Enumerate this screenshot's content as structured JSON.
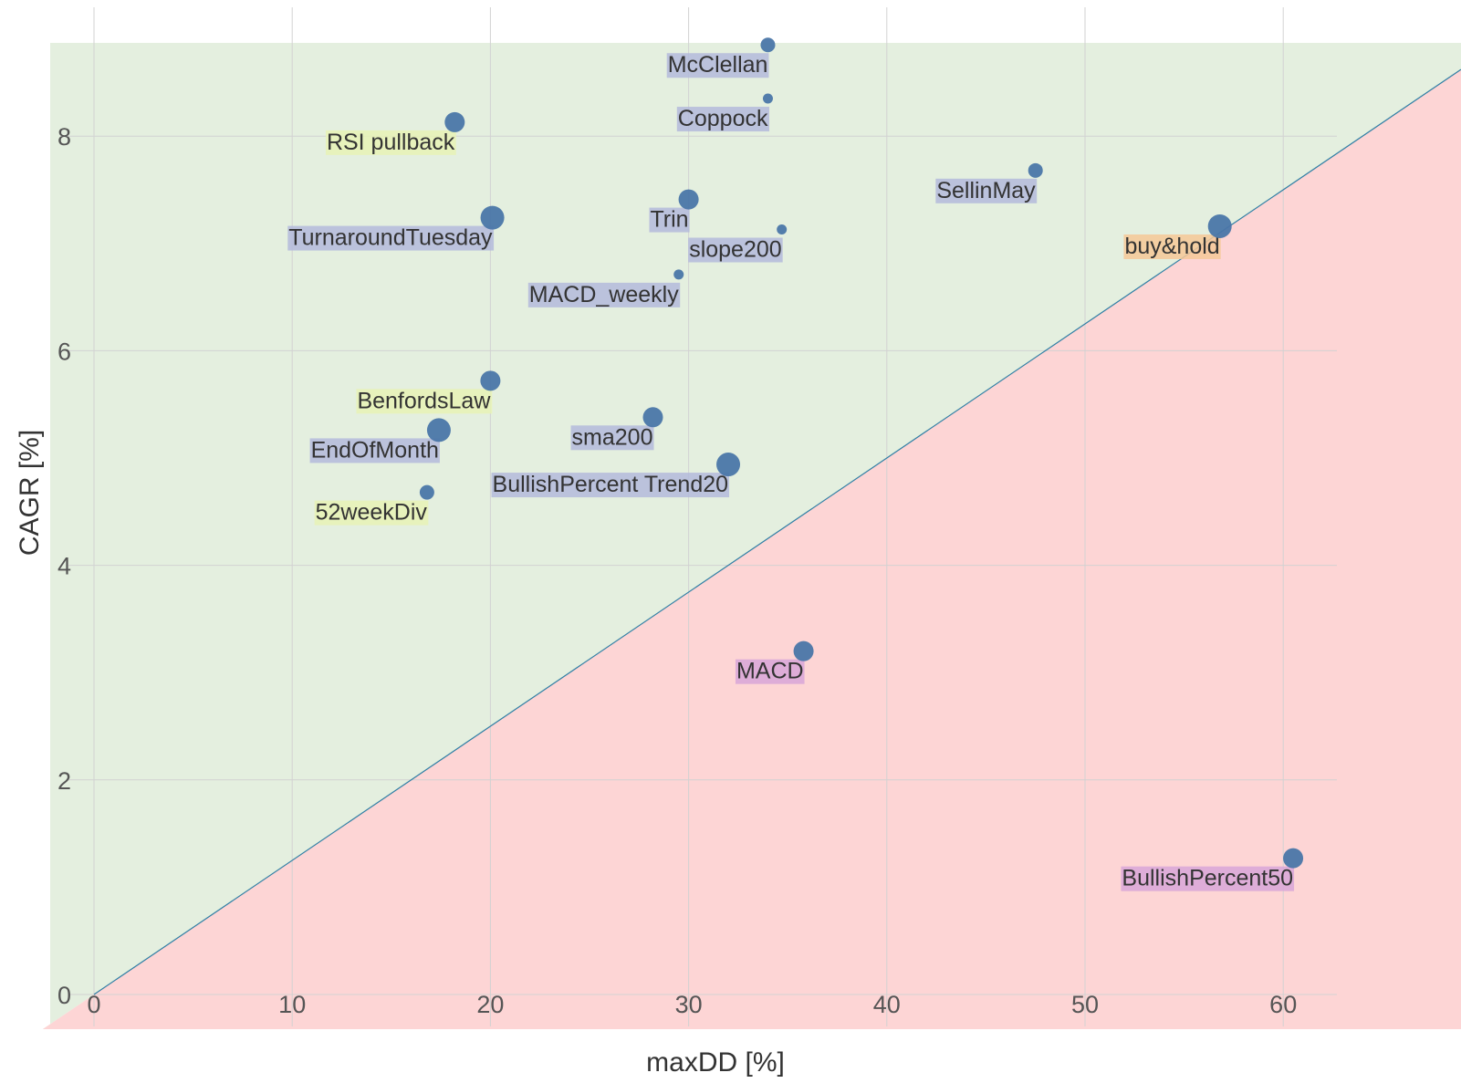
{
  "chart_data": {
    "type": "scatter",
    "title": "",
    "xlabel": "maxDD [%]",
    "ylabel": "CAGR [%]",
    "xlim": [
      -1.3,
      68
    ],
    "ylim": [
      -0.3,
      8.7
    ],
    "x_ticks": [
      "0",
      "10",
      "20",
      "30",
      "40",
      "50",
      "60"
    ],
    "y_ticks": [
      "0",
      "2",
      "4",
      "6",
      "8"
    ],
    "grid": true,
    "reference_line": {
      "slope": 0.125,
      "above_color": "#e4efdf",
      "below_color": "#fdd5d5"
    },
    "point_color": "#4a76a8",
    "points": [
      {
        "name": "McClellan",
        "x": 34.0,
        "y": 8.85,
        "size": "small",
        "highlight": "#b4badc"
      },
      {
        "name": "Coppock",
        "x": 34.0,
        "y": 8.35,
        "size": "tiny",
        "highlight": "#b4badc"
      },
      {
        "name": "RSI pullback",
        "x": 18.2,
        "y": 8.13,
        "size": "medium",
        "highlight": "#e8f2b6"
      },
      {
        "name": "SellinMay",
        "x": 47.5,
        "y": 7.68,
        "size": "small",
        "highlight": "#b4badc"
      },
      {
        "name": "Trin",
        "x": 30.0,
        "y": 7.41,
        "size": "medium",
        "highlight": "#b4badc"
      },
      {
        "name": "TurnaroundTuesday",
        "x": 20.1,
        "y": 7.24,
        "size": "large",
        "highlight": "#b4badc"
      },
      {
        "name": "slope200",
        "x": 34.7,
        "y": 7.13,
        "size": "tiny",
        "highlight": "#b4badc"
      },
      {
        "name": "buy&hold",
        "x": 56.8,
        "y": 7.16,
        "size": "large",
        "highlight": "#f6c898"
      },
      {
        "name": "MACD_weekly",
        "x": 29.5,
        "y": 6.71,
        "size": "tiny",
        "highlight": "#b4badc"
      },
      {
        "name": "BenfordsLaw",
        "x": 20.0,
        "y": 5.72,
        "size": "medium",
        "highlight": "#e8f2b6"
      },
      {
        "name": "sma200",
        "x": 28.2,
        "y": 5.38,
        "size": "medium",
        "highlight": "#b4badc"
      },
      {
        "name": "EndOfMonth",
        "x": 17.4,
        "y": 5.26,
        "size": "large",
        "highlight": "#b4badc"
      },
      {
        "name": "BullishPercent Trend20",
        "x": 32.0,
        "y": 4.94,
        "size": "large",
        "highlight": "#b4badc"
      },
      {
        "name": "52weekDiv",
        "x": 16.8,
        "y": 4.68,
        "size": "small",
        "highlight": "#e8f2b6"
      },
      {
        "name": "MACD",
        "x": 35.8,
        "y": 3.2,
        "size": "medium",
        "highlight": "#d8a6d8"
      },
      {
        "name": "BullishPercent50",
        "x": 60.5,
        "y": 1.27,
        "size": "medium",
        "highlight": "#d8a6d8"
      }
    ]
  }
}
